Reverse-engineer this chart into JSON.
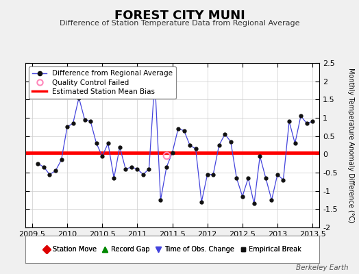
{
  "title": "FOREST CITY MUNI",
  "subtitle": "Difference of Station Temperature Data from Regional Average",
  "ylabel": "Monthly Temperature Anomaly Difference (°C)",
  "credit": "Berkeley Earth",
  "xlim": [
    2009.4,
    2013.6
  ],
  "ylim": [
    -2.0,
    2.5
  ],
  "xticks": [
    2009.5,
    2010.0,
    2010.5,
    2011.0,
    2011.5,
    2012.0,
    2012.5,
    2013.0,
    2013.5
  ],
  "yticks": [
    -2.0,
    -1.5,
    -1.0,
    -0.5,
    0.0,
    0.5,
    1.0,
    1.5,
    2.0,
    2.5
  ],
  "ytick_labels": [
    "-2",
    "-1.5",
    "-1",
    "-0.5",
    "0",
    "0.5",
    "1",
    "1.5",
    "2",
    "2.5"
  ],
  "mean_bias": 0.05,
  "line_color": "#4444DD",
  "marker_color": "#111111",
  "bias_color": "#FF0000",
  "qc_fail_x": 2011.42,
  "qc_fail_y": -0.03,
  "bg_color": "#F0F0F0",
  "plot_bg": "#FFFFFF",
  "grid_color": "#CCCCCC",
  "x_values": [
    2009.583,
    2009.667,
    2009.75,
    2009.833,
    2009.917,
    2010.0,
    2010.083,
    2010.167,
    2010.25,
    2010.333,
    2010.417,
    2010.5,
    2010.583,
    2010.667,
    2010.75,
    2010.833,
    2010.917,
    2011.0,
    2011.083,
    2011.167,
    2011.25,
    2011.333,
    2011.417,
    2011.5,
    2011.583,
    2011.667,
    2011.75,
    2011.833,
    2011.917,
    2012.0,
    2012.083,
    2012.167,
    2012.25,
    2012.333,
    2012.417,
    2012.5,
    2012.583,
    2012.667,
    2012.75,
    2012.833,
    2012.917,
    2013.0,
    2013.083,
    2013.167,
    2013.25,
    2013.333,
    2013.417,
    2013.5
  ],
  "y_values": [
    -0.25,
    -0.35,
    -0.55,
    -0.45,
    -0.15,
    0.75,
    0.85,
    1.55,
    0.95,
    0.9,
    0.3,
    -0.05,
    0.3,
    -0.65,
    0.2,
    -0.4,
    -0.35,
    -0.4,
    -0.55,
    -0.4,
    2.05,
    -1.25,
    -0.35,
    0.05,
    0.7,
    0.65,
    0.25,
    0.15,
    -1.3,
    -0.55,
    -0.55,
    0.25,
    0.55,
    0.35,
    -0.65,
    -1.15,
    -0.65,
    -1.35,
    -0.05,
    -0.65,
    -1.25,
    -0.55,
    -0.7,
    0.9,
    0.3,
    1.05,
    0.85,
    0.9
  ]
}
